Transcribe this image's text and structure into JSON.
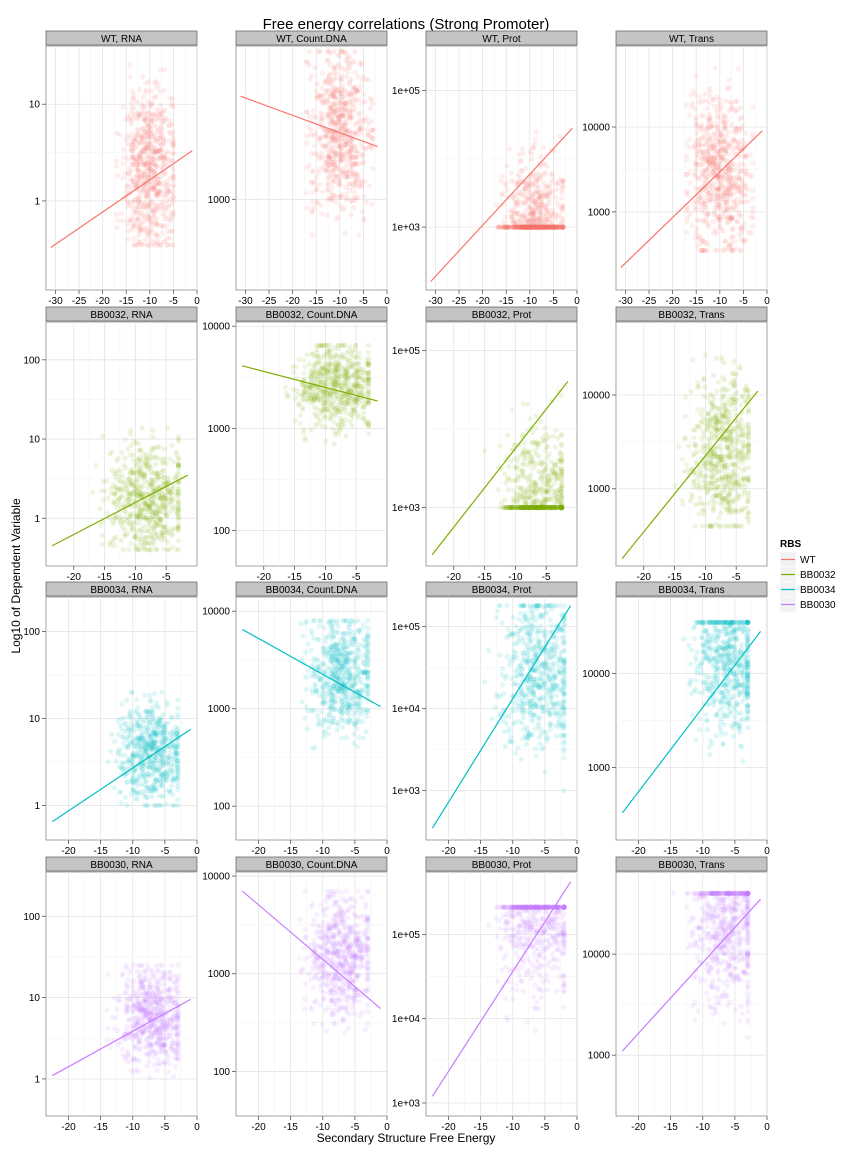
{
  "chart_data": {
    "type": "scatter",
    "title": "Free energy correlations (Strong Promoter)",
    "xlabel": "Secondary Structure Free Energy",
    "ylabel": "Log10 of Dependent Variable",
    "legend": {
      "title": "RBS",
      "position": "right",
      "entries": [
        {
          "name": "WT",
          "color": "#F8766D"
        },
        {
          "name": "BB0032",
          "color": "#7CAE00"
        },
        {
          "name": "BB0034",
          "color": "#00BFC4"
        },
        {
          "name": "BB0030",
          "color": "#C77CFF"
        }
      ]
    },
    "grid": true,
    "y_scale": "log10",
    "rows": [
      {
        "rbs": "WT",
        "color": "#F8766D",
        "xlim": [
          -32,
          0
        ],
        "x_ticks": [
          -30,
          -25,
          -20,
          -15,
          -10,
          -5,
          0
        ],
        "panels": [
          {
            "label": "WT, RNA",
            "ylim": [
              0.12,
              40
            ],
            "y_ticks": [
              {
                "v": 1,
                "t": "1"
              },
              {
                "v": 10,
                "t": "10"
              }
            ],
            "fit": {
              "x0": -31,
              "y0": 0.33,
              "x1": -1,
              "y1": 3.3
            },
            "cloud": {
              "x_min": -17,
              "x_max": -5,
              "y_min": 0.35,
              "y_max": 30,
              "x_center": -10,
              "y_center": 2.0,
              "n": 650
            }
          },
          {
            "label": "WT, Count.DNA",
            "ylim": [
              170,
              20000
            ],
            "y_ticks": [
              {
                "v": 1000,
                "t": "1000"
              }
            ],
            "fit": {
              "x0": -31,
              "y0": 7500,
              "x1": -2,
              "y1": 2800
            },
            "cloud": {
              "x_min": -17,
              "x_max": -3,
              "y_min": 500,
              "y_max": 18000,
              "x_center": -10,
              "y_center": 3800,
              "n": 650
            }
          },
          {
            "label": "WT, Prot",
            "ylim": [
              120,
              450000
            ],
            "y_ticks": [
              {
                "v": 1000,
                "t": "1e+03"
              },
              {
                "v": 100000,
                "t": "1e+05"
              }
            ],
            "fit": {
              "x0": -31,
              "y0": 160,
              "x1": -1,
              "y1": 28000
            },
            "cloud": {
              "x_min": -17,
              "x_max": -3,
              "y_min": 1000,
              "y_max": 180000,
              "x_center": -9,
              "y_center": 1100,
              "n": 650
            }
          },
          {
            "label": "WT, Trans",
            "ylim": [
              120,
              90000
            ],
            "y_ticks": [
              {
                "v": 1000,
                "t": "1000"
              },
              {
                "v": 10000,
                "t": "10000"
              }
            ],
            "fit": {
              "x0": -31,
              "y0": 220,
              "x1": -1,
              "y1": 9000
            },
            "cloud": {
              "x_min": -17,
              "x_max": -3,
              "y_min": 350,
              "y_max": 50000,
              "x_center": -10,
              "y_center": 3000,
              "n": 650
            }
          }
        ]
      },
      {
        "rbs": "BB0032",
        "color": "#7CAE00",
        "xlim": [
          -24.5,
          0
        ],
        "x_ticks": [
          -20,
          -15,
          -10,
          -5
        ],
        "panels": [
          {
            "label": "BB0032, RNA",
            "ylim": [
              0.25,
              300
            ],
            "y_ticks": [
              {
                "v": 1,
                "t": "1"
              },
              {
                "v": 10,
                "t": "10"
              },
              {
                "v": 100,
                "t": "100"
              }
            ],
            "fit": {
              "x0": -23.5,
              "y0": 0.45,
              "x1": -1.5,
              "y1": 3.5
            },
            "cloud": {
              "x_min": -17,
              "x_max": -3,
              "y_min": 0.4,
              "y_max": 15,
              "x_center": -8,
              "y_center": 1.8,
              "n": 600
            }
          },
          {
            "label": "BB0032, Count.DNA",
            "ylim": [
              45,
              11000
            ],
            "y_ticks": [
              {
                "v": 100,
                "t": "100"
              },
              {
                "v": 1000,
                "t": "1000"
              },
              {
                "v": 10000,
                "t": "10000"
              }
            ],
            "fit": {
              "x0": -23.5,
              "y0": 4100,
              "x1": -1.5,
              "y1": 1850
            },
            "cloud": {
              "x_min": -17,
              "x_max": -3,
              "y_min": 700,
              "y_max": 6500,
              "x_center": -8,
              "y_center": 2600,
              "n": 600
            }
          },
          {
            "label": "BB0032, Prot",
            "ylim": [
              180,
              230000
            ],
            "y_ticks": [
              {
                "v": 1000,
                "t": "1e+03"
              },
              {
                "v": 100000,
                "t": "1e+05"
              }
            ],
            "fit": {
              "x0": -23.5,
              "y0": 250,
              "x1": -1.5,
              "y1": 40000
            },
            "cloud": {
              "x_min": -15,
              "x_max": -2.5,
              "y_min": 1000,
              "y_max": 150000,
              "x_center": -6,
              "y_center": 1100,
              "n": 600
            }
          },
          {
            "label": "BB0032, Trans",
            "ylim": [
              150,
              60000
            ],
            "y_ticks": [
              {
                "v": 1000,
                "t": "1000"
              },
              {
                "v": 10000,
                "t": "10000"
              }
            ],
            "fit": {
              "x0": -23.5,
              "y0": 180,
              "x1": -1.5,
              "y1": 11000
            },
            "cloud": {
              "x_min": -15,
              "x_max": -3,
              "y_min": 400,
              "y_max": 30000,
              "x_center": -7,
              "y_center": 2500,
              "n": 600
            }
          }
        ]
      },
      {
        "rbs": "BB0034",
        "color": "#00BFC4",
        "xlim": [
          -23.5,
          0
        ],
        "x_ticks": [
          -20,
          -15,
          -10,
          -5,
          0
        ],
        "panels": [
          {
            "label": "BB0034, RNA",
            "ylim": [
              0.4,
              250
            ],
            "y_ticks": [
              {
                "v": 1,
                "t": "1"
              },
              {
                "v": 10,
                "t": "10"
              },
              {
                "v": 100,
                "t": "100"
              }
            ],
            "fit": {
              "x0": -22.5,
              "y0": 0.65,
              "x1": -1,
              "y1": 7.5
            },
            "cloud": {
              "x_min": -14,
              "x_max": -3,
              "y_min": 1.0,
              "y_max": 20,
              "x_center": -7,
              "y_center": 4,
              "n": 600
            }
          },
          {
            "label": "BB0034, Count.DNA",
            "ylim": [
              45,
              14000
            ],
            "y_ticks": [
              {
                "v": 100,
                "t": "100"
              },
              {
                "v": 1000,
                "t": "1000"
              },
              {
                "v": 10000,
                "t": "10000"
              }
            ],
            "fit": {
              "x0": -22.5,
              "y0": 6500,
              "x1": -1,
              "y1": 1050
            },
            "cloud": {
              "x_min": -14,
              "x_max": -3,
              "y_min": 350,
              "y_max": 8000,
              "x_center": -7,
              "y_center": 2300,
              "n": 600
            }
          },
          {
            "label": "BB0034, Prot",
            "ylim": [
              250,
              230000
            ],
            "y_ticks": [
              {
                "v": 1000,
                "t": "1e+03"
              },
              {
                "v": 10000,
                "t": "1e+04"
              },
              {
                "v": 100000,
                "t": "1e+05"
              }
            ],
            "fit": {
              "x0": -22.5,
              "y0": 350,
              "x1": -1,
              "y1": 180000
            },
            "cloud": {
              "x_min": -15,
              "x_max": -2,
              "y_min": 1000,
              "y_max": 180000,
              "x_center": -6,
              "y_center": 30000,
              "n": 600
            }
          },
          {
            "label": "BB0034, Trans",
            "ylim": [
              170,
              65000
            ],
            "y_ticks": [
              {
                "v": 1000,
                "t": "1000"
              },
              {
                "v": 10000,
                "t": "10000"
              }
            ],
            "fit": {
              "x0": -22.5,
              "y0": 330,
              "x1": -1,
              "y1": 28000
            },
            "cloud": {
              "x_min": -14,
              "x_max": -3,
              "y_min": 600,
              "y_max": 35000,
              "x_center": -6,
              "y_center": 14000,
              "n": 600
            }
          }
        ]
      },
      {
        "rbs": "BB0030",
        "color": "#C77CFF",
        "xlim": [
          -23.5,
          0
        ],
        "x_ticks": [
          -20,
          -15,
          -10,
          -5,
          0
        ],
        "panels": [
          {
            "label": "BB0030, RNA",
            "ylim": [
              0.35,
              350
            ],
            "y_ticks": [
              {
                "v": 1,
                "t": "1"
              },
              {
                "v": 10,
                "t": "10"
              },
              {
                "v": 100,
                "t": "100"
              }
            ],
            "fit": {
              "x0": -22.5,
              "y0": 1.1,
              "x1": -1,
              "y1": 9.5
            },
            "cloud": {
              "x_min": -14,
              "x_max": -3,
              "y_min": 1.0,
              "y_max": 25,
              "x_center": -7,
              "y_center": 6,
              "n": 600
            }
          },
          {
            "label": "BB0030, Count.DNA",
            "ylim": [
              35,
              11000
            ],
            "y_ticks": [
              {
                "v": 100,
                "t": "100"
              },
              {
                "v": 1000,
                "t": "1000"
              },
              {
                "v": 10000,
                "t": "10000"
              }
            ],
            "fit": {
              "x0": -22.5,
              "y0": 7000,
              "x1": -1,
              "y1": 440
            },
            "cloud": {
              "x_min": -14,
              "x_max": -3,
              "y_min": 250,
              "y_max": 7000,
              "x_center": -7,
              "y_center": 1500,
              "n": 600
            }
          },
          {
            "label": "BB0030, Prot",
            "ylim": [
              700,
              550000
            ],
            "y_ticks": [
              {
                "v": 1000,
                "t": "1e+03"
              },
              {
                "v": 10000,
                "t": "1e+04"
              },
              {
                "v": 100000,
                "t": "1e+05"
              }
            ],
            "fit": {
              "x0": -22.5,
              "y0": 1200,
              "x1": -1,
              "y1": 420000
            },
            "cloud": {
              "x_min": -15,
              "x_max": -2,
              "y_min": 900,
              "y_max": 210000,
              "x_center": -6,
              "y_center": 190000,
              "n": 600
            }
          },
          {
            "label": "BB0030, Trans",
            "ylim": [
              250,
              65000
            ],
            "y_ticks": [
              {
                "v": 1000,
                "t": "1000"
              },
              {
                "v": 10000,
                "t": "10000"
              }
            ],
            "fit": {
              "x0": -22.5,
              "y0": 1100,
              "x1": -1,
              "y1": 35000
            },
            "cloud": {
              "x_min": -15,
              "x_max": -3,
              "y_min": 500,
              "y_max": 40000,
              "x_center": -6,
              "y_center": 20000,
              "n": 600
            }
          }
        ]
      }
    ]
  }
}
